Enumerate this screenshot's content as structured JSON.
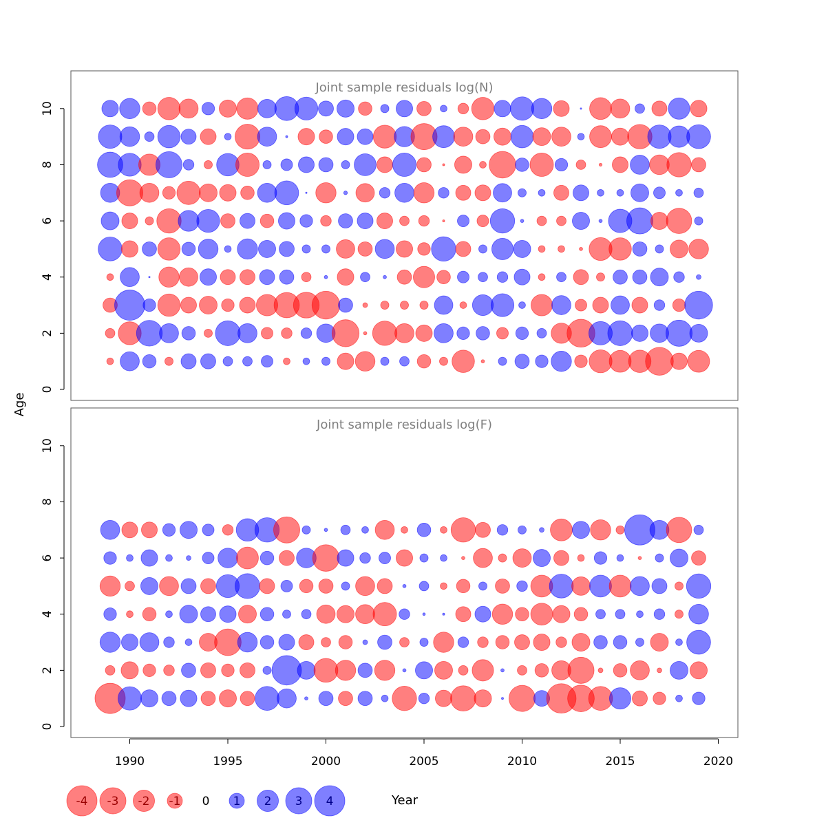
{
  "chart_data": [
    {
      "type": "bubble",
      "title": "Joint sample residuals log(N)",
      "ylabel": "Age",
      "xlabel": "Year",
      "ylim": [
        0,
        11
      ],
      "xlim": [
        1987,
        2021
      ],
      "y_ticks": [
        "0",
        "2",
        "4",
        "6",
        "8",
        "10"
      ],
      "x_ticks": [],
      "years": [
        1989,
        1990,
        1991,
        1992,
        1993,
        1994,
        1995,
        1996,
        1997,
        1998,
        1999,
        2000,
        2001,
        2002,
        2003,
        2004,
        2005,
        2006,
        2007,
        2008,
        2009,
        2010,
        2011,
        2012,
        2013,
        2014,
        2015,
        2016,
        2017,
        2018,
        2019
      ],
      "residuals": [
        {
          "age": 10,
          "values": [
            1.2,
            1.8,
            -0.8,
            -2.2,
            -1.6,
            0.7,
            -1.3,
            -2.0,
            1.5,
            2.5,
            2.3,
            1.0,
            1.3,
            -0.8,
            0.3,
            1.2,
            -0.9,
            0.2,
            -0.5,
            -2.2,
            1.2,
            2.4,
            1.8,
            -1.1,
            0.01,
            -2.1,
            -1.6,
            0.4,
            -1.0,
            2.0,
            -1.2
          ]
        },
        {
          "age": 9,
          "values": [
            2.4,
            1.7,
            0.4,
            2.2,
            1.0,
            -1.1,
            0.2,
            -2.7,
            1.6,
            0.02,
            -1.2,
            -0.8,
            1.2,
            1.1,
            -2.3,
            1.8,
            -3.0,
            2.1,
            -1.6,
            -0.9,
            -1.3,
            2.2,
            -1.4,
            -1.6,
            0.2,
            -2.1,
            -1.3,
            -2.6,
            2.4,
            2.0,
            2.5
          ]
        },
        {
          "age": 8,
          "values": [
            2.8,
            2.3,
            -2.0,
            3.0,
            0.5,
            -0.3,
            2.2,
            -2.4,
            0.3,
            0.6,
            1.1,
            0.9,
            0.3,
            2.1,
            -1.1,
            2.4,
            -0.9,
            -0.02,
            -1.3,
            -0.2,
            -3.1,
            0.8,
            -2.4,
            0.7,
            -0.4,
            -0.04,
            -1.1,
            1.6,
            -1.7,
            -2.6,
            -0.9
          ]
        },
        {
          "age": 7,
          "values": [
            1.6,
            -3.0,
            -1.6,
            -0.7,
            -2.4,
            -1.4,
            -1.2,
            -0.8,
            1.6,
            2.5,
            0.01,
            -1.8,
            0.06,
            -1.5,
            0.5,
            1.6,
            -1.8,
            0.5,
            -1.0,
            -1.1,
            1.5,
            0.3,
            0.2,
            -1.0,
            1.1,
            0.2,
            0.2,
            1.4,
            0.6,
            0.2,
            0.4
          ]
        },
        {
          "age": 6,
          "values": [
            1.4,
            -1.1,
            -0.3,
            -2.6,
            1.9,
            2.3,
            -0.9,
            1.0,
            -0.8,
            1.2,
            0.7,
            -0.5,
            0.9,
            1.1,
            -1.1,
            -0.4,
            -0.5,
            -0.02,
            0.6,
            -0.6,
            2.6,
            0.05,
            -0.4,
            -0.4,
            1.3,
            0.05,
            2.4,
            3.0,
            -1.3,
            -2.8,
            0.3
          ]
        },
        {
          "age": 5,
          "values": [
            2.5,
            -1.2,
            0.9,
            -2.2,
            0.8,
            1.7,
            0.2,
            1.8,
            1.3,
            1.0,
            0.3,
            0.3,
            -1.5,
            -0.9,
            1.6,
            -1.2,
            -0.7,
            2.6,
            -1.0,
            0.3,
            2.0,
            1.3,
            -0.2,
            -0.2,
            -0.05,
            -2.3,
            -2.2,
            0.9,
            0.3,
            -1.4,
            -1.7
          ]
        },
        {
          "age": 4,
          "values": [
            -0.2,
            1.6,
            0.01,
            -1.8,
            -1.5,
            1.2,
            -1.0,
            -1.0,
            1.0,
            0.9,
            -0.4,
            0.05,
            -1.2,
            0.4,
            0.05,
            -0.9,
            -2.0,
            -0.8,
            0.6,
            0.4,
            0.5,
            1.1,
            -0.2,
            0.4,
            -1.0,
            -0.3,
            0.9,
            0.9,
            1.4,
            0.5,
            0.1
          ]
        },
        {
          "age": 3,
          "values": [
            -0.9,
            4.0,
            0.7,
            -2.2,
            -1.1,
            -1.4,
            -0.7,
            -1.1,
            -2.0,
            -2.8,
            -2.9,
            -3.4,
            0.9,
            -0.1,
            -0.3,
            -0.3,
            -0.3,
            1.5,
            -0.2,
            1.9,
            2.3,
            0.2,
            -2.0,
            1.6,
            -0.6,
            -1.1,
            1.5,
            -1.1,
            0.5,
            -0.7,
            3.4
          ]
        },
        {
          "age": 2,
          "values": [
            -0.4,
            -2.3,
            2.9,
            1.6,
            0.8,
            -0.3,
            2.7,
            1.6,
            -0.6,
            -0.5,
            0.5,
            1.5,
            -3.2,
            -0.05,
            -2.6,
            -1.6,
            -1.2,
            1.6,
            0.7,
            0.8,
            -0.6,
            0.7,
            0.4,
            -1.8,
            -3.4,
            2.4,
            2.7,
            1.2,
            1.5,
            3.0,
            1.4
          ]
        },
        {
          "age": 1,
          "values": [
            -0.2,
            1.6,
            0.8,
            -0.3,
            1.0,
            1.0,
            0.4,
            0.4,
            0.6,
            -0.2,
            0.2,
            0.3,
            -1.2,
            -1.7,
            0.3,
            0.4,
            -0.8,
            -0.3,
            -2.2,
            -0.05,
            0.3,
            0.9,
            0.7,
            1.8,
            -0.7,
            -2.3,
            -2.1,
            -2.2,
            -3.4,
            -1.2,
            -2.1
          ]
        }
      ]
    },
    {
      "type": "bubble",
      "title": "Joint sample residuals log(F)",
      "ylabel": "Age",
      "xlabel": "Year",
      "ylim": [
        0,
        11
      ],
      "xlim": [
        1987,
        2021
      ],
      "y_ticks": [
        "0",
        "2",
        "4",
        "6",
        "8",
        "10"
      ],
      "x_ticks": [
        "1990",
        "1995",
        "2000",
        "2005",
        "2010",
        "2015",
        "2020"
      ],
      "years": [
        1989,
        1990,
        1991,
        1992,
        1993,
        1994,
        1995,
        1996,
        1997,
        1998,
        1999,
        2000,
        2001,
        2002,
        2003,
        2004,
        2005,
        2006,
        2007,
        2008,
        2009,
        2010,
        2011,
        2012,
        2013,
        2014,
        2015,
        2016,
        2017,
        2018,
        2019
      ],
      "residuals": [
        {
          "age": 7,
          "values": [
            1.6,
            -1.1,
            -1.1,
            0.7,
            1.3,
            0.6,
            -0.5,
            2.2,
            2.6,
            -3.0,
            0.3,
            0.05,
            0.4,
            0.2,
            -1.6,
            -0.2,
            0.8,
            -0.2,
            -2.6,
            -1.0,
            0.5,
            0.3,
            0.1,
            -2.1,
            1.3,
            -1.8,
            -0.3,
            4.0,
            1.6,
            -2.8,
            0.4
          ]
        },
        {
          "age": 6,
          "values": [
            0.7,
            0.2,
            1.2,
            0.2,
            0.1,
            0.6,
            1.7,
            -2.1,
            0.8,
            -1.0,
            1.7,
            -3.1,
            1.2,
            0.5,
            0.6,
            -1.2,
            0.3,
            0.2,
            -0.05,
            -1.6,
            -0.3,
            -1.5,
            1.3,
            -1.0,
            -0.2,
            0.7,
            0.2,
            -0.05,
            0.3,
            1.4,
            -0.9
          ]
        },
        {
          "age": 5,
          "values": [
            -1.8,
            -0.4,
            1.3,
            -1.6,
            1.0,
            -1.0,
            2.3,
            2.7,
            -1.0,
            0.6,
            -0.8,
            -0.9,
            0.3,
            -1.6,
            -1.0,
            0.05,
            0.4,
            -0.2,
            -0.8,
            0.3,
            -0.9,
            0.5,
            -2.1,
            2.5,
            -1.5,
            2.1,
            -2.1,
            1.6,
            1.0,
            -0.3,
            2.6
          ]
        },
        {
          "age": 4,
          "values": [
            0.7,
            -0.2,
            -0.8,
            0.2,
            1.4,
            1.0,
            1.2,
            -1.4,
            0.8,
            0.3,
            0.4,
            -1.5,
            -1.3,
            -1.6,
            -2.4,
            0.5,
            0.03,
            0.02,
            -1.0,
            1.1,
            -1.8,
            -0.8,
            -2.1,
            -1.3,
            -0.8,
            0.4,
            0.4,
            0.2,
            0.5,
            -0.3,
            1.7
          ]
        },
        {
          "age": 3,
          "values": [
            1.8,
            1.2,
            1.6,
            0.5,
            0.2,
            -1.4,
            -3.1,
            1.7,
            0.8,
            1.1,
            -1.0,
            -0.4,
            -0.8,
            0.1,
            0.9,
            -0.4,
            0.3,
            -1.8,
            0.5,
            -0.5,
            -0.8,
            -1.0,
            -1.2,
            -0.5,
            -1.4,
            0.8,
            0.8,
            0.3,
            -1.4,
            0.2,
            2.5
          ]
        },
        {
          "age": 2,
          "values": [
            -0.4,
            -1.3,
            -0.7,
            -0.5,
            0.9,
            -1.0,
            -0.7,
            -1.0,
            0.3,
            3.8,
            1.4,
            -2.5,
            -1.8,
            0.9,
            -1.8,
            0.05,
            1.3,
            -1.4,
            -0.4,
            -2.0,
            0.05,
            -0.4,
            -0.8,
            -1.6,
            -3.0,
            -0.1,
            -0.8,
            -1.6,
            -0.1,
            1.4,
            -1.3
          ]
        },
        {
          "age": 1,
          "values": [
            -4.0,
            2.4,
            1.3,
            0.9,
            1.2,
            -0.9,
            -1.3,
            -0.9,
            2.5,
            1.6,
            0.05,
            0.9,
            -0.9,
            0.9,
            0.2,
            -2.6,
            0.5,
            -1.2,
            -2.8,
            -1.3,
            0.02,
            -3.0,
            1.1,
            -3.8,
            -3.1,
            -2.5,
            2.0,
            -1.0,
            -0.7,
            0.2,
            0.7
          ]
        }
      ]
    }
  ],
  "legend": {
    "entries": [
      "-4",
      "-3",
      "-2",
      "-1",
      "0",
      "1",
      "2",
      "3",
      "4"
    ],
    "values": [
      -4,
      -3,
      -2,
      -1,
      0,
      1,
      2,
      3,
      4
    ],
    "xlabel": "Year"
  },
  "colors": {
    "negative": "#ff0000",
    "positive": "#0000ff",
    "negative_text": "#990000",
    "positive_text": "#00008b"
  }
}
